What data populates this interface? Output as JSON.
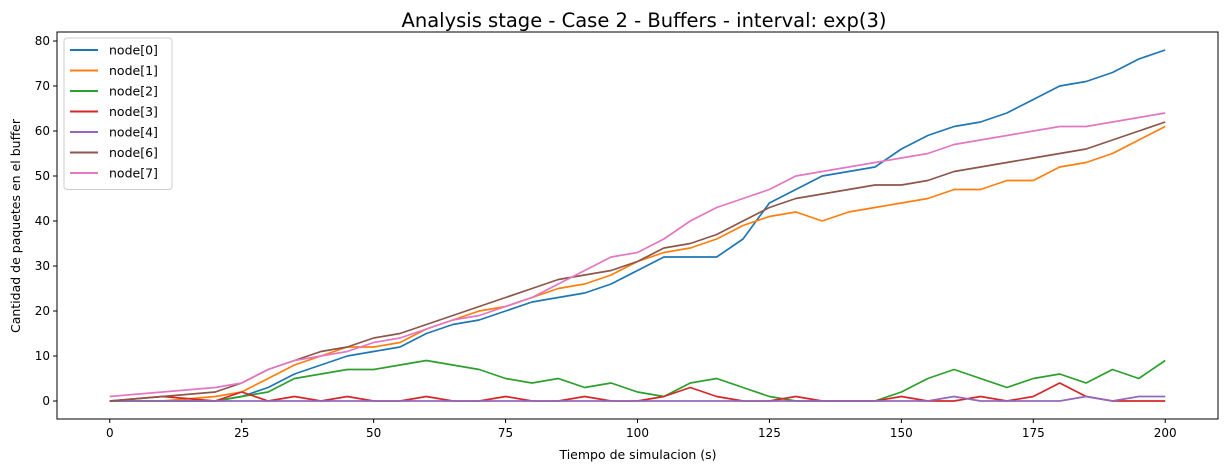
{
  "chart_data": {
    "type": "line",
    "title": "Analysis stage - Case 2 - Buffers - interval: exp(3)",
    "xlabel": "Tiempo de simulacion (s)",
    "ylabel": "Cantidad de paquetes en el buffer",
    "xlim": [
      -10,
      210
    ],
    "ylim": [
      -4,
      82
    ],
    "xticks": [
      0,
      25,
      50,
      75,
      100,
      125,
      150,
      175,
      200
    ],
    "yticks": [
      0,
      10,
      20,
      30,
      40,
      50,
      60,
      70,
      80
    ],
    "legend_position": "upper-left",
    "grid": false,
    "series": [
      {
        "name": "node[0]",
        "color": "#1f77b4",
        "x": [
          0,
          10,
          20,
          25,
          30,
          35,
          40,
          45,
          50,
          55,
          60,
          65,
          70,
          75,
          80,
          85,
          90,
          95,
          100,
          105,
          110,
          115,
          120,
          125,
          130,
          135,
          140,
          145,
          150,
          155,
          160,
          165,
          170,
          175,
          180,
          185,
          190,
          195,
          200
        ],
        "y": [
          0,
          0,
          0,
          1,
          3,
          6,
          8,
          10,
          11,
          12,
          15,
          17,
          18,
          20,
          22,
          23,
          24,
          26,
          29,
          32,
          32,
          32,
          36,
          44,
          47,
          50,
          51,
          52,
          56,
          59,
          61,
          62,
          64,
          67,
          70,
          71,
          73,
          76,
          78
        ]
      },
      {
        "name": "node[1]",
        "color": "#ff7f0e",
        "x": [
          0,
          10,
          20,
          25,
          30,
          35,
          40,
          45,
          50,
          55,
          60,
          65,
          70,
          75,
          80,
          85,
          90,
          95,
          100,
          105,
          110,
          115,
          120,
          125,
          130,
          135,
          140,
          145,
          150,
          155,
          160,
          165,
          170,
          175,
          180,
          185,
          190,
          195,
          200
        ],
        "y": [
          0,
          0,
          1,
          2,
          5,
          8,
          10,
          12,
          12,
          13,
          16,
          18,
          20,
          21,
          23,
          25,
          26,
          28,
          31,
          33,
          34,
          36,
          39,
          41,
          42,
          40,
          42,
          43,
          44,
          45,
          47,
          47,
          49,
          49,
          52,
          53,
          55,
          58,
          61
        ]
      },
      {
        "name": "node[2]",
        "color": "#2ca02c",
        "x": [
          0,
          10,
          20,
          25,
          30,
          35,
          40,
          45,
          50,
          55,
          60,
          65,
          70,
          75,
          80,
          85,
          90,
          95,
          100,
          105,
          110,
          115,
          120,
          125,
          130,
          135,
          140,
          145,
          150,
          155,
          160,
          165,
          170,
          175,
          180,
          185,
          190,
          195,
          200
        ],
        "y": [
          0,
          0,
          0,
          1,
          2,
          5,
          6,
          7,
          7,
          8,
          9,
          8,
          7,
          5,
          4,
          5,
          3,
          4,
          2,
          1,
          4,
          5,
          3,
          1,
          0,
          0,
          0,
          0,
          2,
          5,
          7,
          5,
          3,
          5,
          6,
          4,
          7,
          5,
          9
        ]
      },
      {
        "name": "node[3]",
        "color": "#d62728",
        "x": [
          0,
          10,
          20,
          25,
          30,
          35,
          40,
          45,
          50,
          55,
          60,
          65,
          70,
          75,
          80,
          85,
          90,
          95,
          100,
          105,
          110,
          115,
          120,
          125,
          130,
          135,
          140,
          145,
          150,
          155,
          160,
          165,
          170,
          175,
          180,
          185,
          190,
          195,
          200
        ],
        "y": [
          0,
          1,
          0,
          2,
          0,
          1,
          0,
          1,
          0,
          0,
          1,
          0,
          0,
          1,
          0,
          0,
          1,
          0,
          0,
          1,
          3,
          1,
          0,
          0,
          1,
          0,
          0,
          0,
          1,
          0,
          0,
          1,
          0,
          1,
          4,
          1,
          0,
          0,
          0
        ]
      },
      {
        "name": "node[4]",
        "color": "#9467bd",
        "x": [
          0,
          10,
          20,
          25,
          30,
          35,
          40,
          45,
          50,
          55,
          60,
          65,
          70,
          75,
          80,
          85,
          90,
          95,
          100,
          105,
          110,
          115,
          120,
          125,
          130,
          135,
          140,
          145,
          150,
          155,
          160,
          165,
          170,
          175,
          180,
          185,
          190,
          195,
          200
        ],
        "y": [
          0,
          0,
          0,
          0,
          0,
          0,
          0,
          0,
          0,
          0,
          0,
          0,
          0,
          0,
          0,
          0,
          0,
          0,
          0,
          0,
          0,
          0,
          0,
          0,
          0,
          0,
          0,
          0,
          0,
          0,
          1,
          0,
          0,
          0,
          0,
          1,
          0,
          1,
          1
        ]
      },
      {
        "name": "node[6]",
        "color": "#8c564b",
        "x": [
          0,
          10,
          20,
          25,
          30,
          35,
          40,
          45,
          50,
          55,
          60,
          65,
          70,
          75,
          80,
          85,
          90,
          95,
          100,
          105,
          110,
          115,
          120,
          125,
          130,
          135,
          140,
          145,
          150,
          155,
          160,
          165,
          170,
          175,
          180,
          185,
          190,
          195,
          200
        ],
        "y": [
          0,
          1,
          2,
          4,
          7,
          9,
          11,
          12,
          14,
          15,
          17,
          19,
          21,
          23,
          25,
          27,
          28,
          29,
          31,
          34,
          35,
          37,
          40,
          43,
          45,
          46,
          47,
          48,
          48,
          49,
          51,
          52,
          53,
          54,
          55,
          56,
          58,
          60,
          62
        ]
      },
      {
        "name": "node[7]",
        "color": "#e377c2",
        "x": [
          0,
          10,
          20,
          25,
          30,
          35,
          40,
          45,
          50,
          55,
          60,
          65,
          70,
          75,
          80,
          85,
          90,
          95,
          100,
          105,
          110,
          115,
          120,
          125,
          130,
          135,
          140,
          145,
          150,
          155,
          160,
          165,
          170,
          175,
          180,
          185,
          190,
          195,
          200
        ],
        "y": [
          1,
          2,
          3,
          4,
          7,
          9,
          10,
          11,
          13,
          14,
          16,
          18,
          19,
          21,
          23,
          26,
          29,
          32,
          33,
          36,
          40,
          43,
          45,
          47,
          50,
          51,
          52,
          53,
          54,
          55,
          57,
          58,
          59,
          60,
          61,
          61,
          62,
          63,
          64
        ]
      }
    ]
  }
}
